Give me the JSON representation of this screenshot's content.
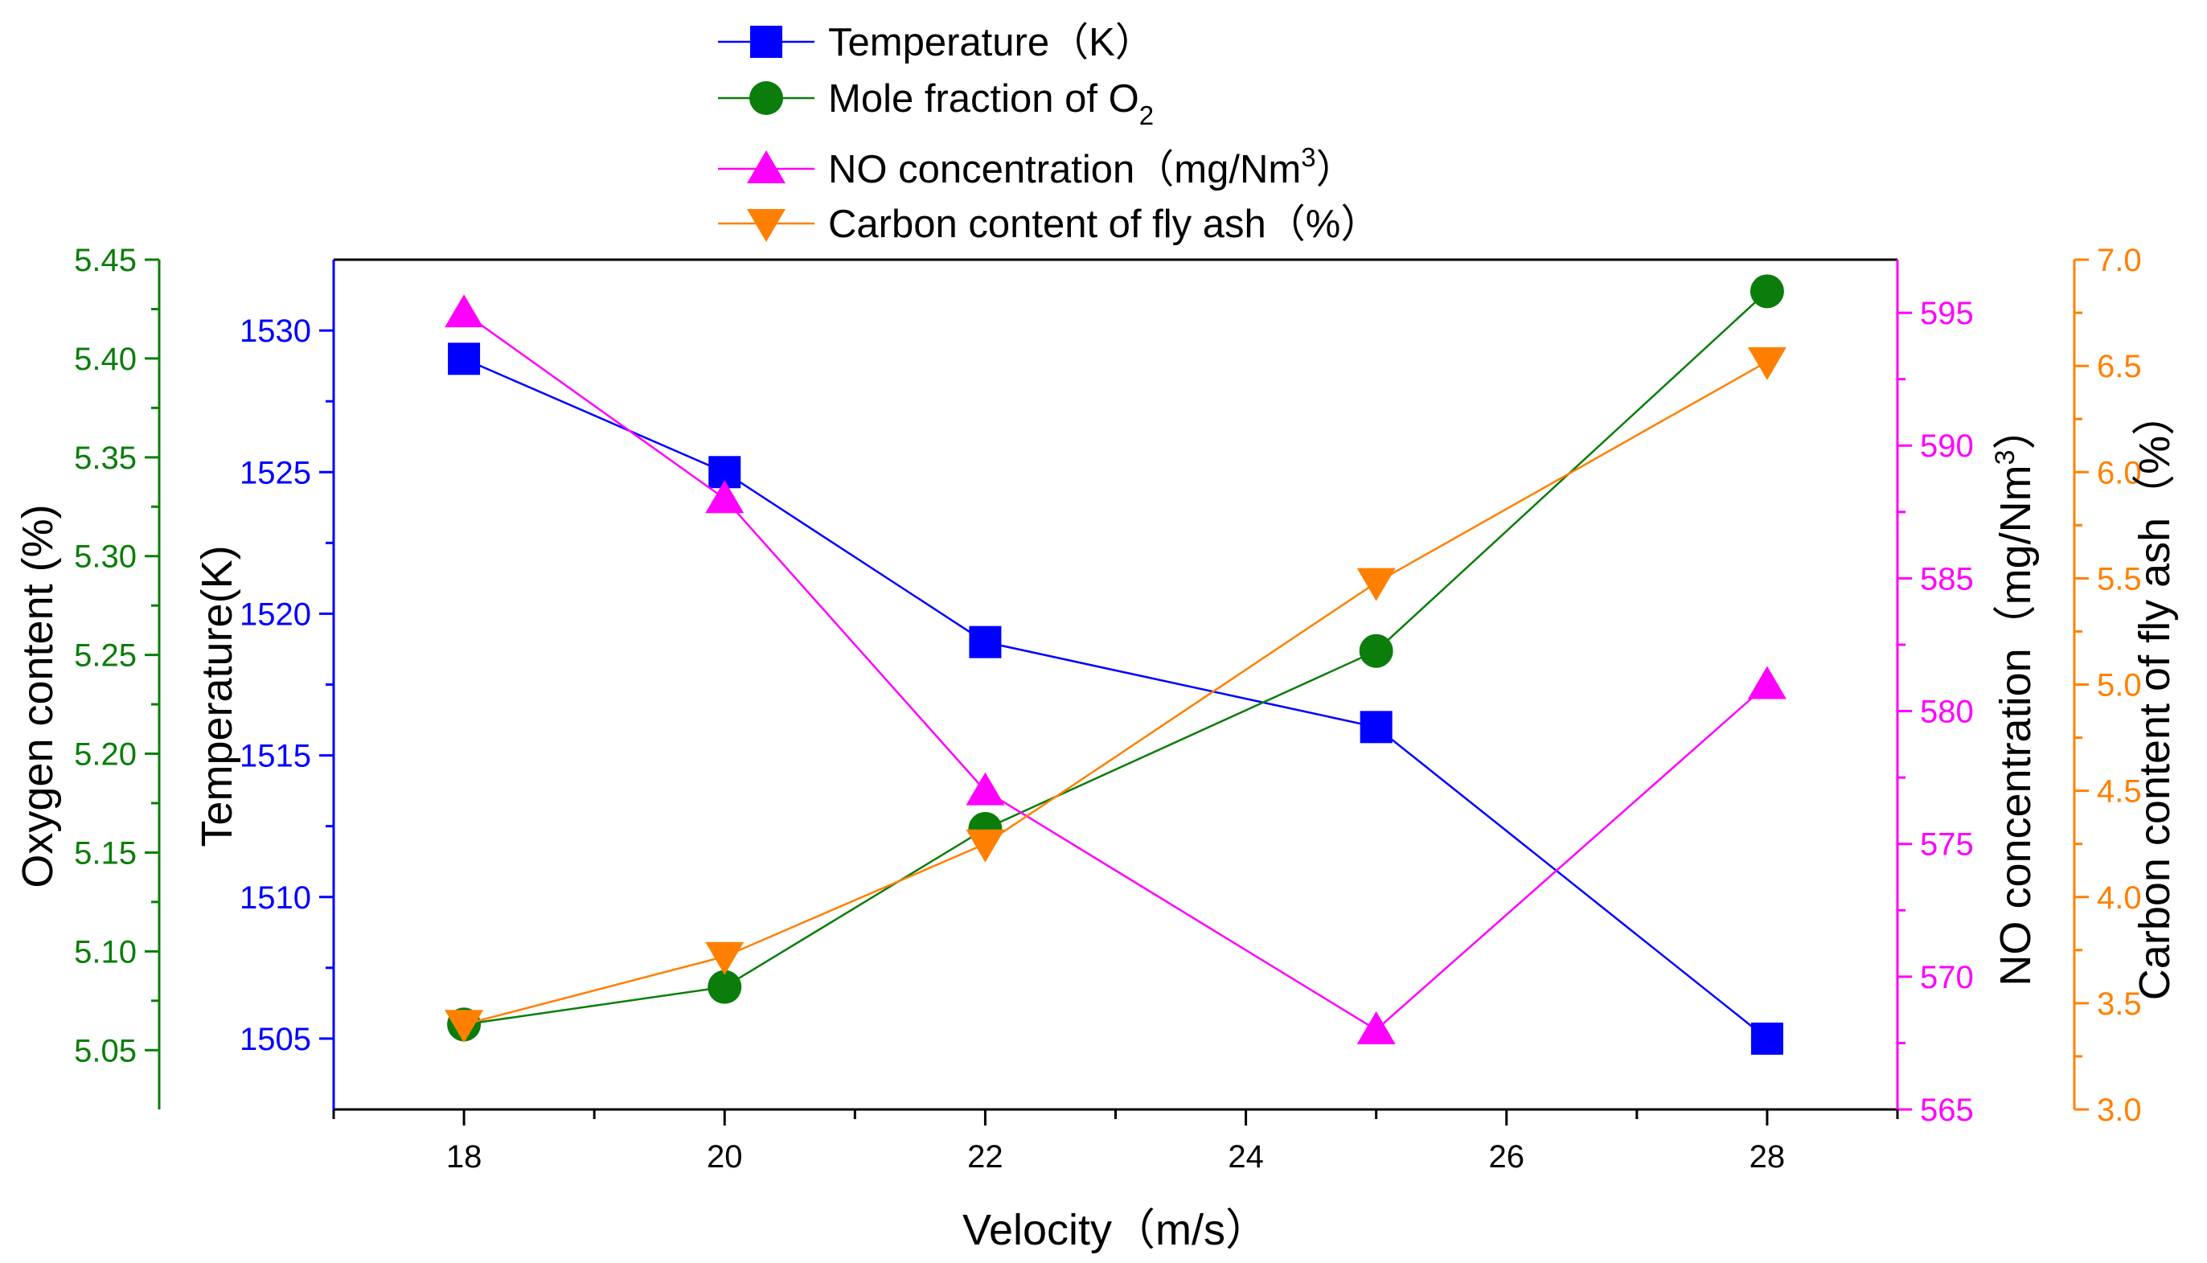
{
  "chart_data": {
    "type": "line",
    "title": "",
    "x": [
      18,
      20,
      22,
      25,
      28
    ],
    "xlabel": "Velocity（m/s）",
    "xlim": [
      17,
      29
    ],
    "xticks": [
      18,
      20,
      22,
      24,
      26,
      28
    ],
    "colors": {
      "temperature": "#0000ff",
      "oxygen": "#0a7d0a",
      "no": "#ff00ff",
      "carbon": "#ff8000",
      "frame": "#000000"
    },
    "series": [
      {
        "key": "temperature",
        "name": "Temperature（K）",
        "axis": "temperature",
        "marker": "square",
        "values": [
          1529,
          1525,
          1519,
          1516,
          1505
        ]
      },
      {
        "key": "oxygen",
        "name": "Mole fraction of O",
        "name_sub": "2",
        "axis": "oxygen",
        "marker": "circle",
        "values": [
          5.063,
          5.082,
          5.162,
          5.252,
          5.434
        ]
      },
      {
        "key": "no",
        "name": "NO concentration（mg/Nm",
        "name_sup": "3",
        "name_end": "）",
        "axis": "no",
        "marker": "triangle-up",
        "values": [
          595,
          588,
          577,
          568,
          581
        ]
      },
      {
        "key": "carbon",
        "name": "Carbon content of fly ash（%）",
        "axis": "carbon",
        "marker": "triangle-down",
        "values": [
          3.4,
          3.72,
          4.25,
          5.48,
          6.52
        ]
      }
    ],
    "axes": {
      "oxygen": {
        "label": "Oxygen content (%)",
        "range": [
          5.02,
          5.45
        ],
        "ticks": [
          5.05,
          5.1,
          5.15,
          5.2,
          5.25,
          5.3,
          5.35,
          5.4,
          5.45
        ],
        "tick_labels": [
          "5.05",
          "5.10",
          "5.15",
          "5.20",
          "5.25",
          "5.30",
          "5.35",
          "5.40",
          "5.45"
        ]
      },
      "temperature": {
        "label": "Temperature(K)",
        "range": [
          1502.5,
          1532.5
        ],
        "ticks": [
          1505,
          1510,
          1515,
          1520,
          1525,
          1530
        ],
        "tick_labels": [
          "1505",
          "1510",
          "1515",
          "1520",
          "1525",
          "1530"
        ]
      },
      "no": {
        "label": "NO concentration（mg/Nm",
        "label_sup": "3",
        "label_end": "）",
        "range": [
          565,
          597
        ],
        "ticks": [
          565,
          570,
          575,
          580,
          585,
          590,
          595
        ],
        "tick_labels": [
          "565",
          "570",
          "575",
          "580",
          "585",
          "590",
          "595"
        ]
      },
      "carbon": {
        "label": "Carbon content of fly ash（%）",
        "range": [
          3.0,
          7.0
        ],
        "ticks": [
          3.0,
          3.5,
          4.0,
          4.5,
          5.0,
          5.5,
          6.0,
          6.5,
          7.0
        ],
        "tick_labels": [
          "3.0",
          "3.5",
          "4.0",
          "4.5",
          "5.0",
          "5.5",
          "6.0",
          "6.5",
          "7.0"
        ]
      }
    }
  }
}
